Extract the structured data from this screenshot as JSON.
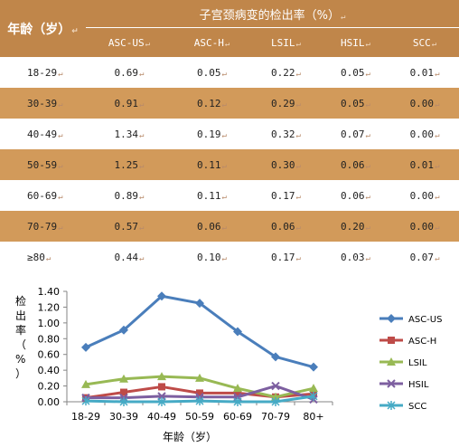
{
  "table": {
    "age_header": "年龄（岁）",
    "group_header": "子宫颈病变的检出率（%）",
    "col_headers": [
      "ASC-US",
      "ASC-H",
      "LSIL",
      "HSIL",
      "SCC"
    ],
    "rows": [
      {
        "age": "18-29",
        "values": [
          "0.69",
          "0.05",
          "0.22",
          "0.05",
          "0.01"
        ]
      },
      {
        "age": "30-39",
        "values": [
          "0.91",
          "0.12",
          "0.29",
          "0.05",
          "0.00"
        ]
      },
      {
        "age": "40-49",
        "values": [
          "1.34",
          "0.19",
          "0.32",
          "0.07",
          "0.00"
        ]
      },
      {
        "age": "50-59",
        "values": [
          "1.25",
          "0.11",
          "0.30",
          "0.06",
          "0.01"
        ]
      },
      {
        "age": "60-69",
        "values": [
          "0.89",
          "0.11",
          "0.17",
          "0.06",
          "0.00"
        ]
      },
      {
        "age": "70-79",
        "values": [
          "0.57",
          "0.06",
          "0.06",
          "0.20",
          "0.00"
        ]
      },
      {
        "age": "≥80",
        "values": [
          "0.44",
          "0.10",
          "0.17",
          "0.03",
          "0.07"
        ]
      }
    ],
    "cell_mark": "↵"
  },
  "chart_data": {
    "type": "line",
    "categories": [
      "18-29",
      "30-39",
      "40-49",
      "50-59",
      "60-69",
      "70-79",
      "80+"
    ],
    "series": [
      {
        "name": "ASC-US",
        "values": [
          0.69,
          0.91,
          1.34,
          1.25,
          0.89,
          0.57,
          0.44
        ],
        "color": "#4a7ebb",
        "marker": "diamond"
      },
      {
        "name": "ASC-H",
        "values": [
          0.05,
          0.12,
          0.19,
          0.11,
          0.11,
          0.06,
          0.1
        ],
        "color": "#be4b48",
        "marker": "square"
      },
      {
        "name": "LSIL",
        "values": [
          0.22,
          0.29,
          0.32,
          0.3,
          0.17,
          0.06,
          0.17
        ],
        "color": "#98b954",
        "marker": "triangle"
      },
      {
        "name": "HSIL",
        "values": [
          0.05,
          0.05,
          0.07,
          0.06,
          0.06,
          0.2,
          0.03
        ],
        "color": "#7d5fa0",
        "marker": "x"
      },
      {
        "name": "SCC",
        "values": [
          0.01,
          0.0,
          0.0,
          0.01,
          0.0,
          0.0,
          0.07
        ],
        "color": "#46aac5",
        "marker": "star"
      }
    ],
    "yticks": [
      "0.00",
      "0.20",
      "0.40",
      "0.60",
      "0.80",
      "1.00",
      "1.20",
      "1.40"
    ],
    "ylim": [
      0,
      1.4
    ],
    "ylabel": "检出率（%）",
    "xlabel": "年龄（岁）",
    "grid": false,
    "legend": "right"
  }
}
